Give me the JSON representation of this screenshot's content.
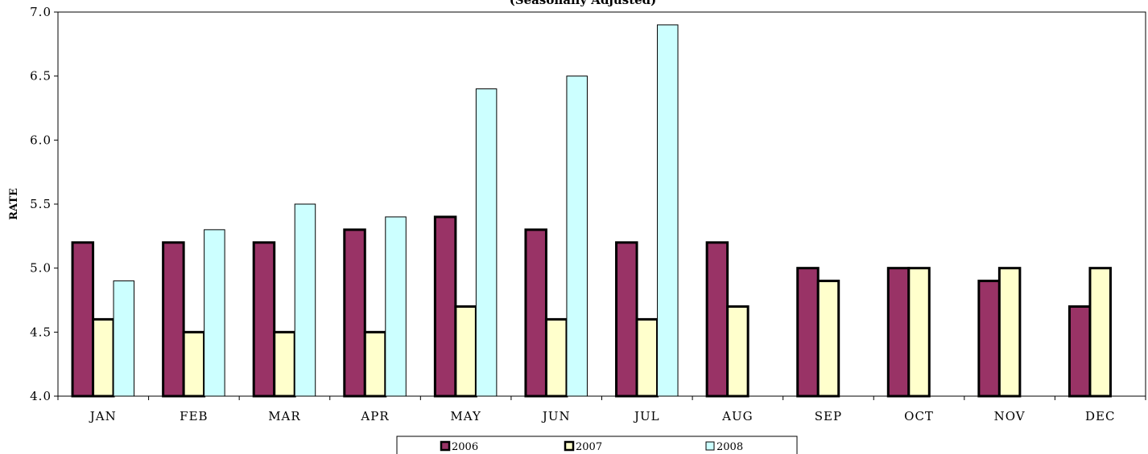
{
  "chart_data": {
    "type": "bar",
    "subtitle": "(Seasonally Adjusted)",
    "ylabel": "RATE",
    "xlabel": "",
    "ylim": [
      4.0,
      7.0
    ],
    "yticks": [
      "4.0",
      "4.5",
      "5.0",
      "5.5",
      "6.0",
      "6.5",
      "7.0"
    ],
    "categories": [
      "JAN",
      "FEB",
      "MAR",
      "APR",
      "MAY",
      "JUN",
      "JUL",
      "AUG",
      "SEP",
      "OCT",
      "NOV",
      "DEC"
    ],
    "series": [
      {
        "name": "2006",
        "color": "#993366",
        "values": [
          5.2,
          5.2,
          5.2,
          5.3,
          5.4,
          5.3,
          5.2,
          5.2,
          5.0,
          5.0,
          4.9,
          4.7
        ]
      },
      {
        "name": "2007",
        "color": "#FFFFCC",
        "values": [
          4.6,
          4.5,
          4.5,
          4.5,
          4.7,
          4.6,
          4.6,
          4.7,
          4.9,
          5.0,
          5.0,
          5.0
        ]
      },
      {
        "name": "2008",
        "color": "#CCFFFF",
        "values": [
          4.9,
          5.3,
          5.5,
          5.4,
          6.4,
          6.5,
          6.9,
          null,
          null,
          null,
          null,
          null
        ]
      }
    ],
    "grid": false,
    "legend_position": "bottom"
  }
}
